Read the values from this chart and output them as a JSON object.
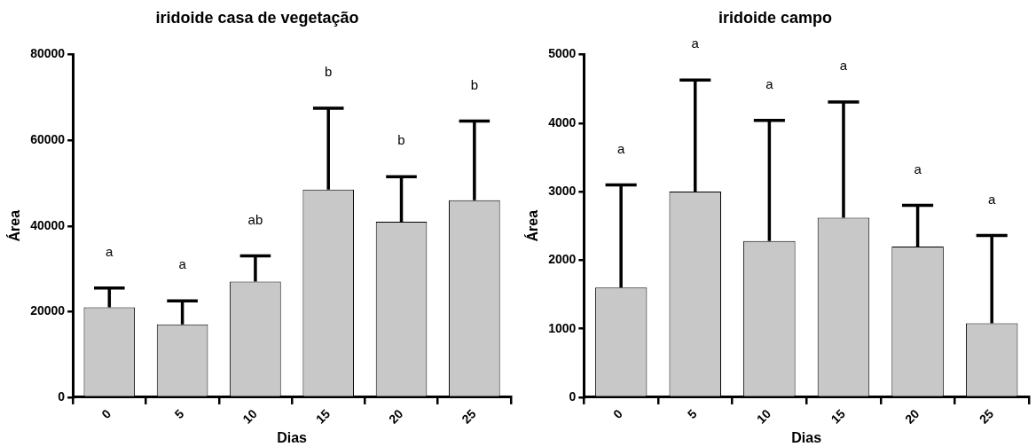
{
  "chart_data": [
    {
      "type": "bar",
      "title": "iridoide casa de vegetação",
      "xlabel": "Dias",
      "ylabel": "Área",
      "categories": [
        "0",
        "5",
        "10",
        "15",
        "20",
        "25"
      ],
      "values": [
        21000,
        17000,
        27000,
        48500,
        41000,
        46000
      ],
      "color": "#c8c8c8",
      "errors": [
        [
          21000,
          25500
        ],
        [
          17000,
          22500
        ],
        [
          27000,
          33000
        ],
        [
          48500,
          67500
        ],
        [
          41000,
          51500
        ],
        [
          46000,
          64500
        ]
      ],
      "ylim": [
        0,
        80000
      ],
      "yticks": [
        0,
        20000,
        40000,
        60000,
        80000
      ],
      "grid": false,
      "legend": false,
      "annotations": [
        "a",
        "a",
        "ab",
        "b",
        "b",
        "b"
      ]
    },
    {
      "type": "bar",
      "title": "iridoide campo",
      "xlabel": "Dias",
      "ylabel": "Área",
      "categories": [
        "0",
        "5",
        "10",
        "15",
        "20",
        "25"
      ],
      "values": [
        1600,
        3000,
        2280,
        2620,
        2200,
        1080
      ],
      "color": "#c8c8c8",
      "errors": [
        [
          1600,
          3100
        ],
        [
          3000,
          4630
        ],
        [
          2280,
          4040
        ],
        [
          2620,
          4310
        ],
        [
          2200,
          2800
        ],
        [
          1080,
          2360
        ]
      ],
      "ylim": [
        0,
        5000
      ],
      "yticks": [
        0,
        1000,
        2000,
        3000,
        4000,
        5000
      ],
      "grid": false,
      "legend": false,
      "annotations": [
        "a",
        "a",
        "a",
        "a",
        "a",
        "a"
      ]
    }
  ]
}
